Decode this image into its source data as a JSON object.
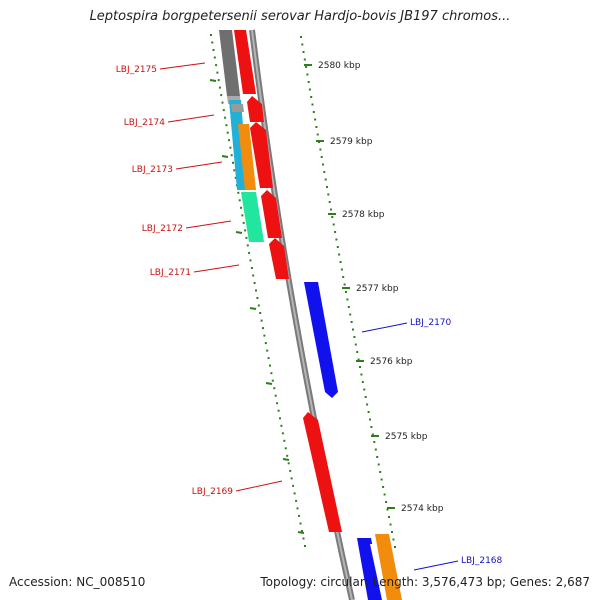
{
  "title": "Leptospira borgpetersenii serovar Hardjo-bovis JB197 chromos...",
  "accession": "Accession: NC_008510",
  "summary": "Topology: circular; Length: 3,576,473 bp; Genes: 2,687",
  "colors": {
    "backbone": "#8c8c8c",
    "tick": "#2e7d1e",
    "forward_gene": "#ee1111",
    "reverse_gene": "#1111ee",
    "reverse_label": "#1111cc",
    "forward_label": "#cc1111",
    "cds_gray": "#777777",
    "cds_cyan": "#22b0d8",
    "cds_orange": "#f28c0c",
    "cds_green": "#22e5a0",
    "ruler_text": "#222222"
  },
  "scale_labels": [
    "2580 kbp",
    "2579 kbp",
    "2578 kbp",
    "2577 kbp",
    "2576 kbp",
    "2575 kbp",
    "2574 kbp"
  ],
  "gene_labels": [
    {
      "text": "LBJ_2175",
      "strand": "forward"
    },
    {
      "text": "LBJ_2174",
      "strand": "forward"
    },
    {
      "text": "LBJ_2173",
      "strand": "forward"
    },
    {
      "text": "LBJ_2172",
      "strand": "forward"
    },
    {
      "text": "LBJ_2171",
      "strand": "forward"
    },
    {
      "text": "LBJ_2170",
      "strand": "reverse"
    },
    {
      "text": "LBJ_2169",
      "strand": "forward"
    },
    {
      "text": "LBJ_2168",
      "strand": "reverse"
    }
  ]
}
